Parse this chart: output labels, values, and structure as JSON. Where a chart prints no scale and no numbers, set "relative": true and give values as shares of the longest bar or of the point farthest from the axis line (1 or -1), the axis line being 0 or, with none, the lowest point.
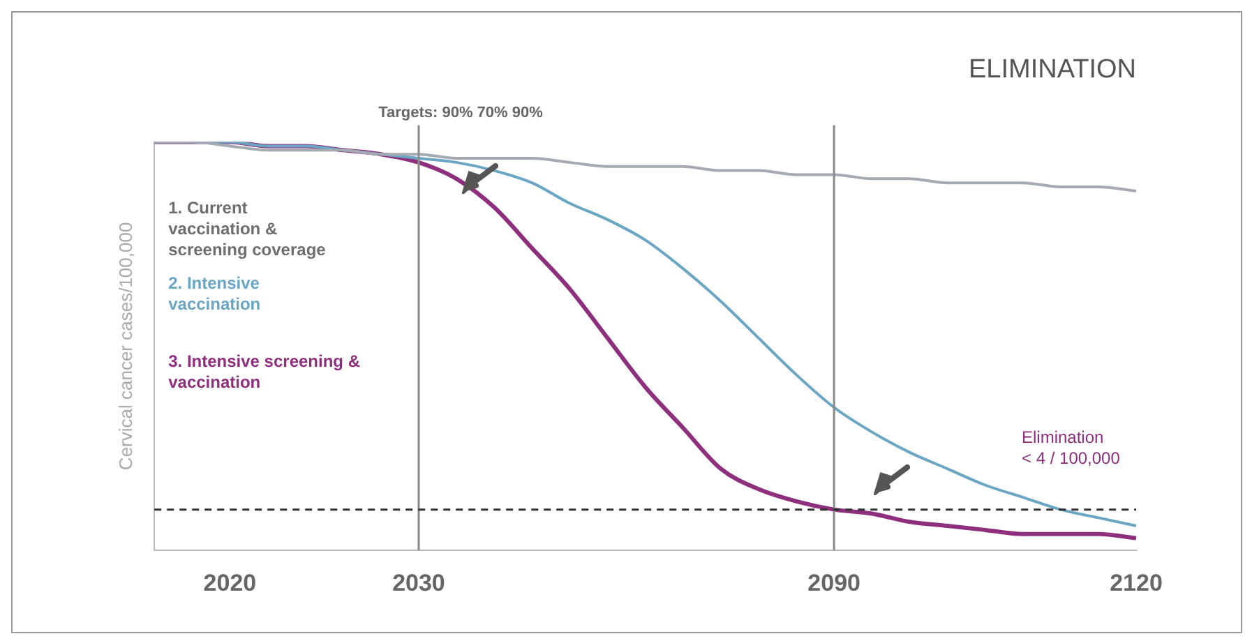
{
  "chart_data": {
    "type": "line",
    "title": "ELIMINATION",
    "ylabel": "Cervical cancer cases/100,000",
    "relative": true,
    "legend": false,
    "grid": false,
    "marker": "none",
    "categories": [
      null,
      null,
      "2020",
      null,
      null,
      null,
      null,
      "2030",
      null,
      null,
      null,
      null,
      null,
      null,
      null,
      null,
      null,
      null,
      "2090",
      null,
      null,
      null,
      null,
      null,
      null,
      null,
      "2120"
    ],
    "series": [
      {
        "name": "1. Current vaccination & screening coverage",
        "color": "#a3aab2",
        "values": [
          1.0,
          1.0,
          0.99,
          0.98,
          0.98,
          0.98,
          0.97,
          0.97,
          0.96,
          0.96,
          0.96,
          0.95,
          0.94,
          0.94,
          0.94,
          0.93,
          0.93,
          0.92,
          0.92,
          0.91,
          0.91,
          0.9,
          0.9,
          0.9,
          0.89,
          0.89,
          0.88
        ]
      },
      {
        "name": "2. Intensive vaccination",
        "color": "#6aa6c4",
        "values": [
          1.0,
          1.0,
          1.0,
          0.99,
          0.99,
          0.98,
          0.97,
          0.96,
          0.95,
          0.93,
          0.9,
          0.85,
          0.81,
          0.76,
          0.69,
          0.61,
          0.52,
          0.43,
          0.35,
          0.29,
          0.24,
          0.2,
          0.16,
          0.13,
          0.1,
          0.08,
          0.06
        ]
      },
      {
        "name": "3. Intensive screening & vaccination",
        "color": "#8e2f7e",
        "values": [
          1.0,
          1.0,
          1.0,
          0.99,
          0.99,
          0.98,
          0.97,
          0.95,
          0.91,
          0.84,
          0.74,
          0.64,
          0.52,
          0.4,
          0.3,
          0.2,
          0.15,
          0.12,
          0.1,
          0.09,
          0.07,
          0.06,
          0.05,
          0.04,
          0.04,
          0.04,
          0.03
        ]
      }
    ],
    "ref_lines": [
      {
        "axis": "x",
        "value": "2030",
        "color": "#8a8a8a",
        "line_style": "solid"
      },
      {
        "axis": "x",
        "value": "2090",
        "color": "#8a8a8a",
        "line_style": "solid"
      },
      {
        "axis": "y",
        "value": 0.1,
        "label": "Elimination\n< 4 / 100,000",
        "color": "#333333",
        "line_style": "dashed"
      }
    ],
    "annotations": [
      "Targets: 90% 70% 90%"
    ]
  }
}
